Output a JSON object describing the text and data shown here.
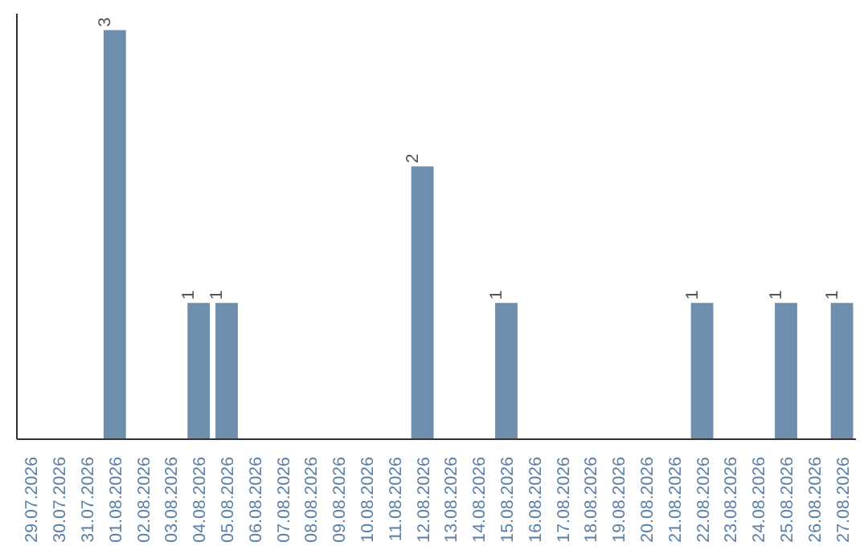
{
  "chart_data": {
    "type": "bar",
    "categories": [
      "29.07.2026",
      "30.07.2026",
      "31.07.2026",
      "01.08.2026",
      "02.08.2026",
      "03.08.2026",
      "04.08.2026",
      "05.08.2026",
      "06.08.2026",
      "07.08.2026",
      "08.08.2026",
      "09.08.2026",
      "10.08.2026",
      "11.08.2026",
      "12.08.2026",
      "13.08.2026",
      "14.08.2026",
      "15.08.2026",
      "16.08.2026",
      "17.08.2026",
      "18.08.2026",
      "19.08.2026",
      "20.08.2026",
      "21.08.2026",
      "22.08.2026",
      "23.08.2026",
      "24.08.2026",
      "25.08.2026",
      "26.08.2026",
      "27.08.2026"
    ],
    "values": [
      null,
      null,
      null,
      3,
      null,
      null,
      1,
      1,
      null,
      null,
      null,
      null,
      null,
      null,
      2,
      null,
      null,
      1,
      null,
      null,
      null,
      null,
      null,
      null,
      1,
      null,
      null,
      1,
      null,
      1
    ],
    "color": "#6d8fad",
    "data_labels": true,
    "grid": false,
    "tick_labels": "x"
  }
}
